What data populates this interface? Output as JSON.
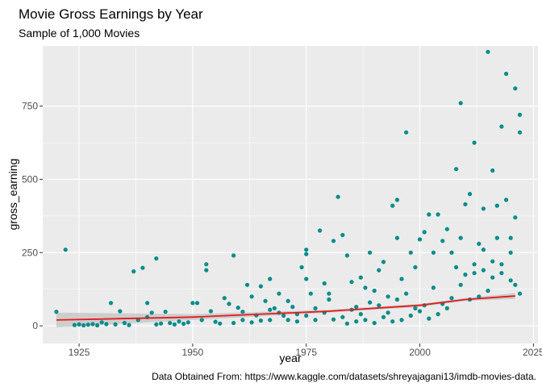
{
  "chart_data": {
    "type": "scatter",
    "title": "Movie Gross Earnings by Year",
    "subtitle": "Sample of 1,000 Movies",
    "xlabel": "year",
    "ylabel": "gross_earning",
    "caption": "Data Obtained From: https://www.kaggle.com/datasets/shreyajagani13/imdb-movies-data.",
    "xlim": [
      1917,
      2026
    ],
    "ylim": [
      -60,
      955
    ],
    "x_ticks": [
      1925,
      1950,
      1975,
      2000,
      2025
    ],
    "y_ticks": [
      0,
      250,
      500,
      750
    ],
    "grid": true,
    "point_color": "#008B8B",
    "trend_color": "#E31A1C",
    "band_color": "#C8C8C8",
    "panel_background": "#EBEBEB",
    "trend": {
      "x": [
        1920,
        1950,
        1980,
        2000,
        2010,
        2021
      ],
      "y": [
        20,
        30,
        50,
        70,
        90,
        102
      ],
      "band_lower": [
        -5,
        20,
        45,
        65,
        85,
        92
      ],
      "band_upper": [
        45,
        40,
        55,
        75,
        95,
        112
      ]
    },
    "series": [
      {
        "points": [
          [
            1920,
            48
          ],
          [
            1922,
            260
          ],
          [
            1924,
            3
          ],
          [
            1925,
            5
          ],
          [
            1926,
            2
          ],
          [
            1927,
            4
          ],
          [
            1928,
            6
          ],
          [
            1929,
            2
          ],
          [
            1930,
            12
          ],
          [
            1931,
            6
          ],
          [
            1932,
            78
          ],
          [
            1933,
            5
          ],
          [
            1934,
            50
          ],
          [
            1935,
            10
          ],
          [
            1936,
            3
          ],
          [
            1937,
            186
          ],
          [
            1938,
            20
          ],
          [
            1939,
            198
          ],
          [
            1940,
            78
          ],
          [
            1940,
            30
          ],
          [
            1941,
            45
          ],
          [
            1942,
            230
          ],
          [
            1942,
            5
          ],
          [
            1943,
            8
          ],
          [
            1944,
            48
          ],
          [
            1945,
            10
          ],
          [
            1946,
            5
          ],
          [
            1947,
            15
          ],
          [
            1948,
            7
          ],
          [
            1949,
            12
          ],
          [
            1950,
            78
          ],
          [
            1951,
            78
          ],
          [
            1952,
            20
          ],
          [
            1953,
            210
          ],
          [
            1953,
            190
          ],
          [
            1954,
            50
          ],
          [
            1955,
            14
          ],
          [
            1956,
            8
          ],
          [
            1957,
            95
          ],
          [
            1958,
            75
          ],
          [
            1959,
            10
          ],
          [
            1959,
            240
          ],
          [
            1960,
            62
          ],
          [
            1961,
            48
          ],
          [
            1961,
            20
          ],
          [
            1962,
            140
          ],
          [
            1963,
            100
          ],
          [
            1964,
            36
          ],
          [
            1965,
            135
          ],
          [
            1966,
            85
          ],
          [
            1967,
            20
          ],
          [
            1967,
            160
          ],
          [
            1968,
            60
          ],
          [
            1969,
            110
          ],
          [
            1970,
            35
          ],
          [
            1971,
            85
          ],
          [
            1972,
            65
          ],
          [
            1973,
            40
          ],
          [
            1974,
            200
          ],
          [
            1975,
            160
          ],
          [
            1975,
            245
          ],
          [
            1975,
            260
          ],
          [
            1976,
            110
          ],
          [
            1977,
            20
          ],
          [
            1978,
            325
          ],
          [
            1979,
            145
          ],
          [
            1980,
            110
          ],
          [
            1980,
            90
          ],
          [
            1981,
            290
          ],
          [
            1982,
            440
          ],
          [
            1983,
            310
          ],
          [
            1984,
            240
          ],
          [
            1985,
            150
          ],
          [
            1986,
            65
          ],
          [
            1987,
            165
          ],
          [
            1988,
            130
          ],
          [
            1989,
            250
          ],
          [
            1990,
            120
          ],
          [
            1991,
            190
          ],
          [
            1992,
            218
          ],
          [
            1993,
            100
          ],
          [
            1994,
            410
          ],
          [
            1995,
            430
          ],
          [
            1995,
            300
          ],
          [
            1996,
            160
          ],
          [
            1997,
            660
          ],
          [
            1998,
            250
          ],
          [
            1999,
            200
          ],
          [
            2000,
            295
          ],
          [
            2001,
            320
          ],
          [
            2002,
            380
          ],
          [
            2003,
            250
          ],
          [
            2004,
            380
          ],
          [
            2005,
            290
          ],
          [
            2006,
            330
          ],
          [
            2007,
            250
          ],
          [
            2008,
            535
          ],
          [
            2009,
            760
          ],
          [
            2009,
            300
          ],
          [
            2010,
            415
          ],
          [
            2011,
            450
          ],
          [
            2012,
            625
          ],
          [
            2013,
            280
          ],
          [
            2014,
            400
          ],
          [
            2015,
            935
          ],
          [
            2016,
            530
          ],
          [
            2017,
            410
          ],
          [
            2017,
            300
          ],
          [
            2018,
            680
          ],
          [
            2019,
            860
          ],
          [
            2019,
            430
          ],
          [
            2020,
            250
          ],
          [
            2021,
            810
          ],
          [
            2021,
            370
          ],
          [
            2022,
            720
          ],
          [
            2022,
            660
          ],
          [
            2012,
            210
          ],
          [
            2014,
            190
          ],
          [
            2016,
            165
          ],
          [
            2018,
            210
          ],
          [
            2020,
            155
          ],
          [
            2015,
            120
          ],
          [
            2013,
            100
          ],
          [
            2011,
            90
          ],
          [
            2009,
            140
          ],
          [
            2007,
            95
          ],
          [
            2005,
            75
          ],
          [
            2003,
            130
          ],
          [
            2001,
            70
          ],
          [
            1999,
            60
          ],
          [
            1997,
            110
          ],
          [
            1995,
            90
          ],
          [
            1993,
            45
          ],
          [
            1991,
            70
          ],
          [
            1989,
            80
          ],
          [
            1987,
            40
          ],
          [
            1985,
            55
          ],
          [
            1983,
            30
          ],
          [
            1981,
            22
          ],
          [
            1979,
            45
          ],
          [
            1977,
            60
          ],
          [
            1975,
            35
          ],
          [
            1973,
            15
          ],
          [
            1971,
            20
          ],
          [
            1969,
            45
          ],
          [
            1967,
            55
          ],
          [
            1965,
            18
          ],
          [
            1963,
            12
          ],
          [
            2008,
            200
          ],
          [
            2010,
            175
          ],
          [
            2012,
            180
          ],
          [
            2014,
            260
          ],
          [
            2016,
            220
          ],
          [
            2018,
            180
          ],
          [
            2020,
            300
          ],
          [
            2021,
            140
          ],
          [
            2022,
            110
          ],
          [
            2006,
            60
          ],
          [
            2004,
            40
          ],
          [
            2002,
            25
          ],
          [
            2000,
            50
          ],
          [
            1998,
            35
          ],
          [
            1996,
            20
          ],
          [
            1994,
            15
          ],
          [
            1992,
            30
          ],
          [
            1990,
            10
          ],
          [
            1988,
            20
          ],
          [
            1986,
            15
          ],
          [
            1984,
            8
          ]
        ]
      }
    ]
  }
}
